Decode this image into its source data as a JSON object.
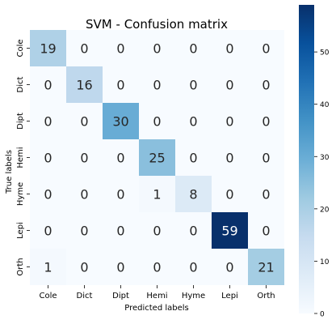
{
  "chart_data": {
    "type": "heatmap",
    "title": "SVM - Confusion matrix",
    "xlabel": "Predicted labels",
    "ylabel": "True labels",
    "x_categories": [
      "Cole",
      "Dict",
      "Dipt",
      "Hemi",
      "Hyme",
      "Lepi",
      "Orth"
    ],
    "y_categories": [
      "Cole",
      "Dict",
      "Dipt",
      "Hemi",
      "Hyme",
      "Lepi",
      "Orth"
    ],
    "values": [
      [
        19,
        0,
        0,
        0,
        0,
        0,
        0
      ],
      [
        0,
        16,
        0,
        0,
        0,
        0,
        0
      ],
      [
        0,
        0,
        30,
        0,
        0,
        0,
        0
      ],
      [
        0,
        0,
        0,
        25,
        0,
        0,
        0
      ],
      [
        0,
        0,
        0,
        1,
        8,
        0,
        0
      ],
      [
        0,
        0,
        0,
        0,
        0,
        59,
        0
      ],
      [
        1,
        0,
        0,
        0,
        0,
        0,
        21
      ]
    ],
    "colorbar": {
      "min": 0,
      "max": 59,
      "ticks": [
        0,
        10,
        20,
        30,
        40,
        50
      ],
      "colormap": "Blues",
      "colors": [
        "#f7fbff",
        "#deebf7",
        "#c6dbef",
        "#9ecae1",
        "#6baed6",
        "#4292c6",
        "#2171b5",
        "#08519c",
        "#08306b"
      ]
    }
  }
}
